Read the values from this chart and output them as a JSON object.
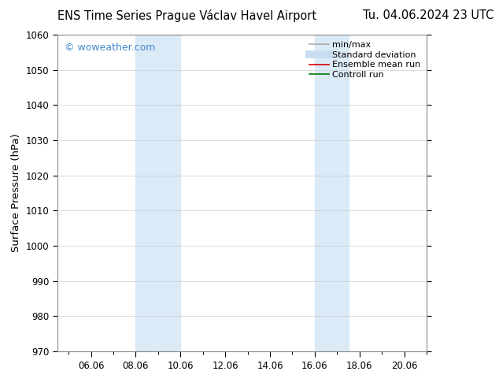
{
  "title_left": "ENS Time Series Prague Václav Havel Airport",
  "title_right": "Tu. 04.06.2024 23 UTC",
  "ylabel": "Surface Pressure (hPa)",
  "xlim_start": 4.5,
  "xlim_end": 21.0,
  "ylim": [
    970,
    1060
  ],
  "yticks": [
    970,
    980,
    990,
    1000,
    1010,
    1020,
    1030,
    1040,
    1050,
    1060
  ],
  "xtick_labels": [
    "06.06",
    "08.06",
    "10.06",
    "12.06",
    "14.06",
    "16.06",
    "18.06",
    "20.06"
  ],
  "xtick_positions": [
    6,
    8,
    10,
    12,
    14,
    16,
    18,
    20
  ],
  "shaded_bands": [
    {
      "x_start": 8.0,
      "x_end": 10.0
    },
    {
      "x_start": 16.0,
      "x_end": 17.5
    }
  ],
  "shade_color": "#daeaf7",
  "watermark_text": "© woweather.com",
  "watermark_color": "#4488cc",
  "legend_items": [
    {
      "label": "min/max",
      "color": "#aaaaaa",
      "linestyle": "-",
      "linewidth": 1.2
    },
    {
      "label": "Standard deviation",
      "color": "#c8ddf0",
      "linestyle": "-",
      "linewidth": 7
    },
    {
      "label": "Ensemble mean run",
      "color": "#dd0000",
      "linestyle": "-",
      "linewidth": 1.2
    },
    {
      "label": "Controll run",
      "color": "#007700",
      "linestyle": "-",
      "linewidth": 1.2
    }
  ],
  "bg_color": "#ffffff",
  "grid_color": "#cccccc",
  "font_family": "DejaVu Sans",
  "title_fontsize": 10.5,
  "tick_fontsize": 8.5,
  "ylabel_fontsize": 9.5,
  "watermark_fontsize": 9,
  "legend_fontsize": 8
}
